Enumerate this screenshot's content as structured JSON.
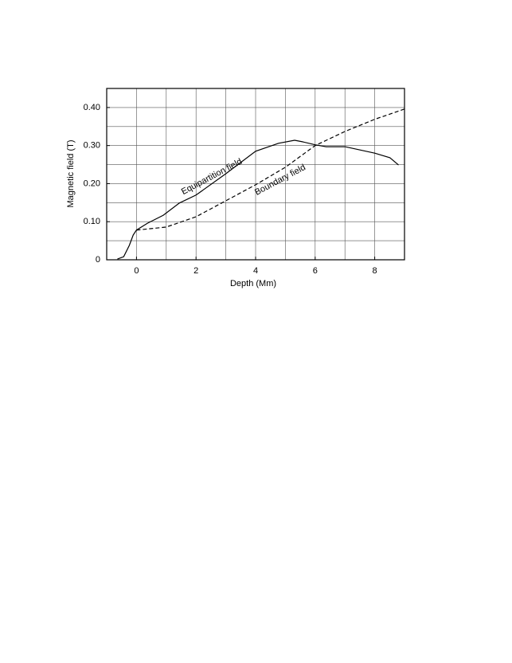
{
  "chart_data": {
    "type": "line",
    "xlabel": "Depth (Mm)",
    "ylabel": "Magnetic field (T)",
    "xlim": [
      -1,
      9
    ],
    "ylim": [
      0,
      0.45
    ],
    "xticks": [
      0,
      2,
      4,
      6,
      8
    ],
    "yticks": [
      0,
      {
        "value": 0.1,
        "label": "0.10"
      },
      {
        "value": 0.2,
        "label": "0.20"
      },
      {
        "value": 0.3,
        "label": "0.30"
      },
      {
        "value": 0.4,
        "label": "0.40"
      }
    ],
    "grid": true,
    "grid_x": [
      -1,
      0,
      1,
      2,
      3,
      4,
      5,
      6,
      7,
      8,
      9
    ],
    "grid_y": [
      0,
      0.05,
      0.1,
      0.15,
      0.2,
      0.25,
      0.3,
      0.35,
      0.4,
      0.45
    ],
    "series": [
      {
        "name": "Equipartition field",
        "color": "#000000",
        "dashed": false,
        "x": [
          -0.64,
          -0.43,
          -0.24,
          -0.11,
          0,
          0.37,
          0.9,
          1.44,
          2,
          3,
          4,
          4.77,
          5.31,
          5.57,
          6,
          6.37,
          7,
          8,
          8.51,
          8.8
        ],
        "values": [
          0.002,
          0.008,
          0.038,
          0.065,
          0.078,
          0.096,
          0.117,
          0.149,
          0.17,
          0.226,
          0.285,
          0.306,
          0.314,
          0.31,
          0.302,
          0.297,
          0.297,
          0.28,
          0.268,
          0.249
        ]
      },
      {
        "name": "Boundary field",
        "color": "#000000",
        "dashed": true,
        "x": [
          0,
          1,
          2,
          3,
          4,
          5,
          6,
          7,
          8,
          9
        ],
        "values": [
          0.078,
          0.086,
          0.113,
          0.155,
          0.197,
          0.243,
          0.3,
          0.337,
          0.369,
          0.396
        ]
      }
    ]
  }
}
